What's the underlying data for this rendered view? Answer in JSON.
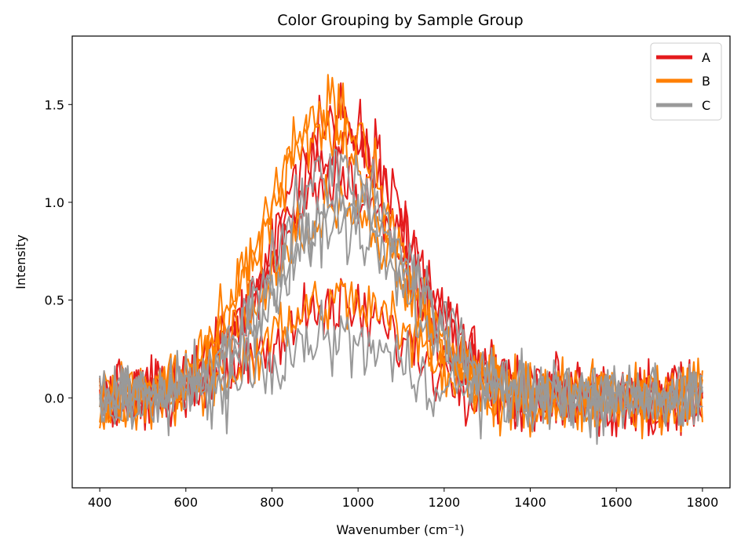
{
  "chart_data": {
    "type": "line",
    "title": "Color Grouping by Sample Group",
    "xlabel": "Wavenumber (cm⁻¹)",
    "ylabel": "Intensity",
    "xlim": [
      336,
      1864
    ],
    "ylim": [
      -0.46,
      1.85
    ],
    "xticks": [
      400,
      600,
      800,
      1000,
      1200,
      1400,
      1600,
      1800
    ],
    "xtick_labels": [
      "400",
      "600",
      "800",
      "1000",
      "1200",
      "1400",
      "1600",
      "1800"
    ],
    "yticks": [
      0.0,
      0.5,
      1.0,
      1.5
    ],
    "ytick_labels": [
      "0.0",
      "0.5",
      "1.0",
      "1.5"
    ],
    "grid": false,
    "legend": {
      "location": "top-right",
      "entries": [
        {
          "label": "A",
          "color": "#e41a1c"
        },
        {
          "label": "B",
          "color": "#ff7f00"
        },
        {
          "label": "C",
          "color": "#999999"
        }
      ]
    },
    "x_range": [
      400,
      1800
    ],
    "x_step": 5,
    "noise_amplitude": 0.12,
    "series": [
      {
        "group": "A",
        "color": "#e41a1c",
        "peak": 1.45,
        "center": 960,
        "width": 150
      },
      {
        "group": "A",
        "color": "#e41a1c",
        "peak": 1.3,
        "center": 970,
        "width": 155
      },
      {
        "group": "A",
        "color": "#e41a1c",
        "peak": 1.15,
        "center": 950,
        "width": 150
      },
      {
        "group": "A",
        "color": "#e41a1c",
        "peak": 0.45,
        "center": 950,
        "width": 160
      },
      {
        "group": "B",
        "color": "#ff7f00",
        "peak": 1.5,
        "center": 930,
        "width": 145
      },
      {
        "group": "B",
        "color": "#ff7f00",
        "peak": 1.35,
        "center": 920,
        "width": 150
      },
      {
        "group": "B",
        "color": "#ff7f00",
        "peak": 0.95,
        "center": 950,
        "width": 160
      },
      {
        "group": "B",
        "color": "#ff7f00",
        "peak": 0.5,
        "center": 960,
        "width": 160
      },
      {
        "group": "C",
        "color": "#999999",
        "peak": 1.2,
        "center": 960,
        "width": 150
      },
      {
        "group": "C",
        "color": "#999999",
        "peak": 1.0,
        "center": 980,
        "width": 155
      },
      {
        "group": "C",
        "color": "#999999",
        "peak": 0.9,
        "center": 950,
        "width": 155
      },
      {
        "group": "C",
        "color": "#999999",
        "peak": 0.3,
        "center": 950,
        "width": 140
      }
    ]
  }
}
